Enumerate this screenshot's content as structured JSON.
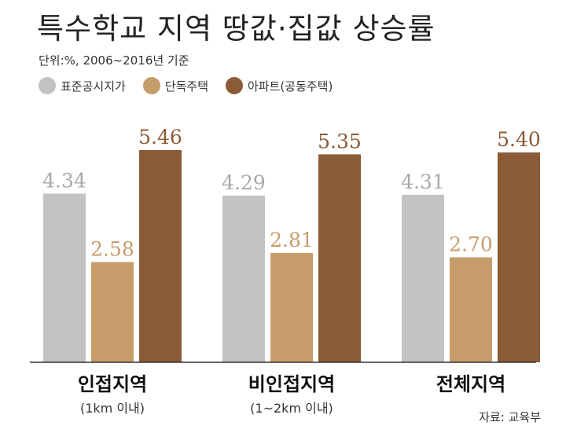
{
  "title": "특수학교 지역 땅값·집값 상승률",
  "subtitle": "단위:%, 2006~2016년 기준",
  "source": "자료: 교육부",
  "chart_data": {
    "type": "bar",
    "categories": [
      "인접지역",
      "비인접지역",
      "전체지역"
    ],
    "category_notes": [
      "(1km 이내)",
      "(1~2km 이내)",
      ""
    ],
    "series": [
      {
        "name": "표준공시지가",
        "color": "#c3c3c3",
        "label_color": "#a9a9a9",
        "values": [
          4.34,
          4.29,
          4.31
        ]
      },
      {
        "name": "단독주택",
        "color": "#c79c6b",
        "label_color": "#c79c6b",
        "values": [
          2.58,
          2.81,
          2.7
        ]
      },
      {
        "name": "아파트(공동주택)",
        "color": "#8b5a36",
        "label_color": "#8b5a36",
        "values": [
          5.46,
          5.35,
          5.4
        ]
      }
    ],
    "value_labels": [
      [
        "4.34",
        "4.29",
        "4.31"
      ],
      [
        "2.58",
        "2.81",
        "2.70"
      ],
      [
        "5.46",
        "5.35",
        "5.40"
      ]
    ],
    "ylim": [
      0,
      5.46
    ],
    "grid": false,
    "legend": "top-left"
  }
}
